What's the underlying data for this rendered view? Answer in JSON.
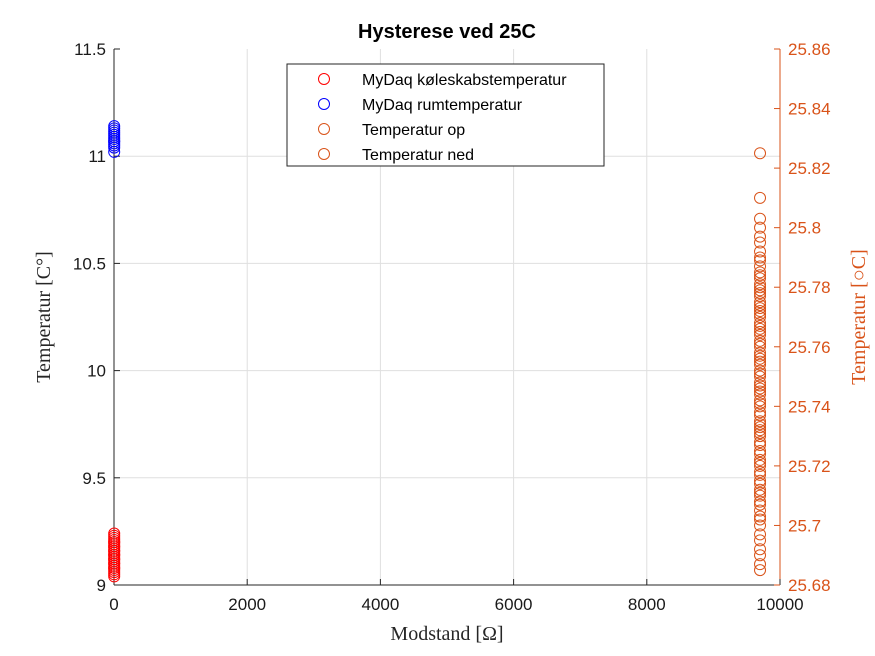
{
  "chart_data": {
    "type": "scatter",
    "title": "Hysterese ved 25C",
    "xlabel": "Modstand [Ω]",
    "ylabel_left": "Temperatur [C°]",
    "ylabel_right": "Temperatur [○C]",
    "xlim": [
      0,
      10000
    ],
    "ylim_left": [
      9,
      11.5
    ],
    "ylim_right": [
      25.68,
      25.86
    ],
    "xticks": [
      "0",
      "2000",
      "4000",
      "6000",
      "8000",
      "10000"
    ],
    "yticks_left": [
      "9",
      "9.5",
      "10",
      "10.5",
      "11",
      "11.5"
    ],
    "yticks_right": [
      "25.68",
      "25.7",
      "25.72",
      "25.74",
      "25.76",
      "25.78",
      "25.8",
      "25.82",
      "25.84",
      "25.86"
    ],
    "grid": true,
    "legend_position": "top-center",
    "series": [
      {
        "name": "MyDaq køleskabstemperatur",
        "color": "#ff0000",
        "axis": "left",
        "x": [
          3,
          3,
          3,
          3,
          3,
          3,
          3,
          3,
          3,
          3,
          3,
          3,
          3,
          3,
          3,
          3,
          3,
          3,
          3,
          3,
          3,
          3,
          3,
          3,
          3,
          3,
          3,
          3
        ],
        "y": [
          9.05,
          9.06,
          9.07,
          9.08,
          9.09,
          9.1,
          9.11,
          9.12,
          9.13,
          9.14,
          9.15,
          9.16,
          9.17,
          9.18,
          9.19,
          9.2,
          9.21,
          9.22,
          9.23,
          9.24,
          9.08,
          9.12,
          9.16,
          9.2,
          9.04,
          9.1,
          9.14,
          9.18
        ]
      },
      {
        "name": "MyDaq rumtemperatur",
        "color": "#0000ff",
        "axis": "left",
        "x": [
          3,
          3,
          3,
          3,
          3,
          3,
          3,
          3,
          3,
          3,
          3,
          3,
          3
        ],
        "y": [
          11.02,
          11.04,
          11.05,
          11.06,
          11.07,
          11.08,
          11.09,
          11.1,
          11.11,
          11.12,
          11.13,
          11.14,
          11.07
        ]
      },
      {
        "name": "Temperatur op",
        "color": "#d95319",
        "axis": "right",
        "x": [
          9700,
          9700,
          9700,
          9700,
          9700,
          9700,
          9700,
          9700,
          9700,
          9700,
          9700,
          9700,
          9700,
          9700,
          9700,
          9700,
          9700,
          9700,
          9700,
          9700,
          9700,
          9700,
          9700,
          9700,
          9700,
          9700,
          9700,
          9700,
          9700,
          9700,
          9700,
          9700,
          9700,
          9700,
          9700,
          9700,
          9700,
          9700,
          9700,
          9700
        ],
        "y": [
          25.685,
          25.69,
          25.695,
          25.7,
          25.702,
          25.705,
          25.708,
          25.71,
          25.712,
          25.715,
          25.718,
          25.72,
          25.722,
          25.725,
          25.728,
          25.73,
          25.732,
          25.735,
          25.738,
          25.74,
          25.742,
          25.745,
          25.748,
          25.75,
          25.752,
          25.755,
          25.758,
          25.76,
          25.762,
          25.765,
          25.768,
          25.77,
          25.772,
          25.775,
          25.778,
          25.78,
          25.785,
          25.79,
          25.795,
          25.8
        ]
      },
      {
        "name": "Temperatur ned",
        "color": "#d95319",
        "axis": "right",
        "x": [
          9700,
          9700,
          9700,
          9700,
          9700,
          9700,
          9700,
          9700,
          9700,
          9700,
          9700,
          9700,
          9700,
          9700,
          9700,
          9700,
          9700,
          9700,
          9700,
          9700,
          9700,
          9700,
          9700,
          9700,
          9700,
          9700,
          9700,
          9700,
          9700,
          9700,
          9700,
          9700,
          9700,
          9700,
          9700,
          9700,
          9700,
          9700,
          9700,
          9700,
          9700,
          9700
        ],
        "y": [
          25.687,
          25.692,
          25.697,
          25.703,
          25.707,
          25.711,
          25.714,
          25.717,
          25.721,
          25.724,
          25.727,
          25.731,
          25.734,
          25.737,
          25.741,
          25.744,
          25.747,
          25.751,
          25.754,
          25.757,
          25.761,
          25.764,
          25.767,
          25.771,
          25.774,
          25.777,
          25.781,
          25.784,
          25.787,
          25.789,
          25.792,
          25.797,
          25.803,
          25.81,
          25.825,
          25.783,
          25.779,
          25.773,
          25.766,
          25.756,
          25.746,
          25.733
        ]
      }
    ]
  }
}
